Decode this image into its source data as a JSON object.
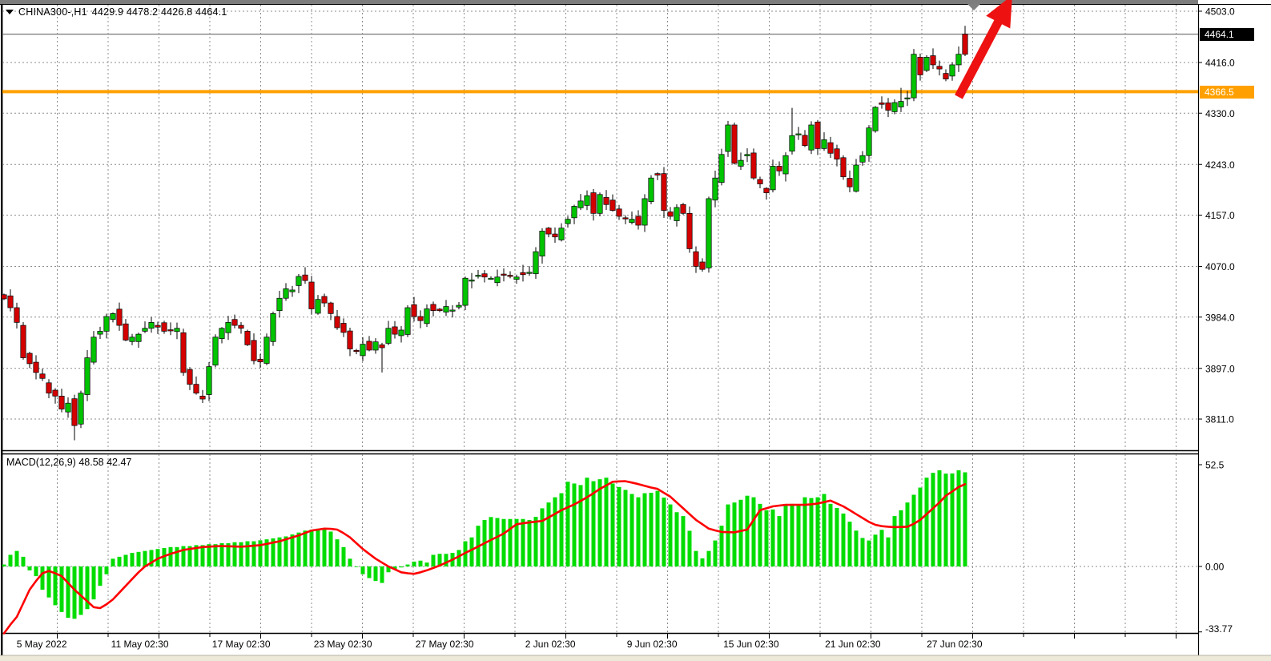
{
  "header": {
    "symbol": "CHINA300-,H1",
    "ohlc_text": "4429.9 4478.2 4426.8 4464.1"
  },
  "indicator": {
    "name": "MACD(12,26,9)",
    "values_text": "48.58 42.47"
  },
  "price_axis": {
    "current_badge": "4464.1",
    "hline_badge": "4366.5",
    "tick_labels": [
      "4503.0",
      "4416.0",
      "4330.0",
      "4243.0",
      "4157.0",
      "4070.0",
      "3984.0",
      "3897.0",
      "3811.0"
    ]
  },
  "macd_axis": {
    "tick_labels": [
      "52.5",
      "0.00",
      "-33.77"
    ],
    "tick_values": [
      52.5,
      0,
      -33.77
    ]
  },
  "time_axis": {
    "labels": [
      "5 May 2022",
      "11 May 02:30",
      "17 May 02:30",
      "23 May 02:30",
      "27 May 02:30",
      "2 Jun 02:30",
      "9 Jun 02:30",
      "15 Jun 02:30",
      "21 Jun 02:30",
      "27 Jun 02:30"
    ]
  },
  "colors": {
    "bull": "#00c400",
    "bear": "#d40000",
    "wick": "#000000",
    "hist": "#00dc00",
    "signal": "#ff0000",
    "hline": "#ffa000",
    "grid": "#8c8c8c",
    "price_line": "#777777",
    "arrow": "#ee1111",
    "marker": "#808080",
    "top_strip": "#7d7d7d",
    "bottom_strip": "#ece9d8",
    "border": "#000000"
  },
  "chart_data": [
    {
      "type": "candlestick",
      "title": "CHINA300-,H1",
      "yticks": [
        4503,
        4416,
        4330,
        4243,
        4157,
        4070,
        3984,
        3897,
        3811
      ],
      "ylim": [
        3770,
        4517
      ],
      "current_price": 4464.1,
      "hline_price": 4366.5,
      "ohlc_current": {
        "open": 4429.9,
        "high": 4478.2,
        "low": 4426.8,
        "close": 4464.1
      },
      "first_open": 4022,
      "closes": [
        4015,
        4000,
        3975,
        3915,
        3905,
        3890,
        3880,
        3855,
        3850,
        3828,
        3838,
        3800,
        3855,
        3915,
        3950,
        3960,
        3985,
        3990,
        3970,
        3945,
        3950,
        3955,
        3965,
        3975,
        3967,
        3960,
        3962,
        3965,
        3890,
        3870,
        3855,
        3845,
        3900,
        3950,
        3965,
        3975,
        3970,
        3965,
        3937,
        3910,
        3908,
        3950,
        3990,
        4016,
        4032,
        4030,
        4053,
        4046,
        3998,
        4014,
        4008,
        3990,
        3966,
        3958,
        3930,
        3926,
        3938,
        3928,
        3942,
        3932,
        3965,
        3955,
        3962,
        4000,
        3985,
        3978,
        3998,
        3995,
        3995,
        4002,
        3996,
        4004,
        4050,
        4047,
        4055,
        4052,
        4050,
        4052,
        4055,
        4053,
        4052,
        4056,
        4060,
        4095,
        4130,
        4125,
        4120,
        4135,
        4150,
        4172,
        4181,
        4190,
        4160,
        4192,
        4175,
        4165,
        4155,
        4152,
        4150,
        4140,
        4185,
        4220,
        4225,
        4165,
        4155,
        4170,
        4160,
        4100,
        4070,
        4065,
        4185,
        4220,
        4260,
        4310,
        4245,
        4250,
        4260,
        4220,
        4210,
        4195,
        4240,
        4232,
        4258,
        4292,
        4295,
        4275,
        4310,
        4270,
        4285,
        4262,
        4252,
        4222,
        4205,
        4242,
        4258,
        4305,
        4340,
        4345,
        4335,
        4348,
        4350,
        4356,
        4430,
        4395,
        4425,
        4412,
        4405,
        4388,
        4412,
        4430,
        4464.1
      ],
      "specials": {
        "11": {
          "low": 3775
        },
        "59": {
          "low": 3890
        },
        "123": {
          "high": 4339
        },
        "140": {
          "high": 4373
        },
        "150": {
          "open": 4429.9,
          "high": 4478.2,
          "low": 4426.8,
          "color": "bear"
        }
      },
      "annotations": {
        "arrow": {
          "from": [
            1197,
            121
          ],
          "to": [
            1264,
            -6
          ]
        },
        "shift_marker_x": 1216
      }
    },
    {
      "type": "bar",
      "title": "MACD(12,26,9)",
      "yticks": [
        52.5,
        0,
        -33.77
      ],
      "current": {
        "macd": 48.58,
        "signal": 42.47
      },
      "histogram": [
        1,
        6,
        8,
        5,
        -2,
        -5,
        -12,
        -16,
        -20,
        -23.5,
        -26.5,
        -27,
        -25,
        -22,
        -17,
        -10,
        -4,
        4,
        5,
        6,
        7,
        7.5,
        8,
        8.5,
        9,
        9.5,
        10,
        10,
        10.5,
        10.5,
        11,
        11,
        11.5,
        11.5,
        12,
        12,
        12.5,
        12.5,
        13,
        13,
        13.5,
        14,
        14.5,
        15,
        15.5,
        16.5,
        17.5,
        18.5,
        19,
        19.5,
        19,
        18,
        14,
        10,
        4,
        0,
        -4,
        -6,
        -7.5,
        -8.5,
        -3,
        -1.5,
        -0.5,
        1,
        2.5,
        3,
        2,
        6,
        6.5,
        6.5,
        7,
        8.5,
        13,
        15,
        21,
        24,
        25.5,
        25,
        24.5,
        24.5,
        24.5,
        24.5,
        24,
        25.6,
        30,
        33,
        35.7,
        37.8,
        43.7,
        42.8,
        42,
        45.8,
        44,
        45,
        45.8,
        42.8,
        41,
        39.5,
        37.4,
        35.7,
        37.8,
        38,
        39,
        35.5,
        32,
        28,
        26,
        18.4,
        8,
        4.2,
        8,
        13.4,
        21,
        32,
        33,
        34.4,
        36.5,
        35.7,
        32.3,
        29,
        29.4,
        26,
        31.5,
        32.3,
        31.5,
        35.7,
        35.3,
        35.7,
        37.4,
        32.3,
        30.2,
        27.3,
        23.1,
        18.5,
        14.7,
        13.4,
        16.4,
        18.9,
        15,
        26,
        29,
        33,
        37,
        40.7,
        45.8,
        48.3,
        49.6,
        47.9,
        48,
        49.6,
        48.58
      ],
      "signal": [
        -34.5,
        -30,
        -26,
        -19,
        -12,
        -7.5,
        -3.5,
        -2.3,
        -3.5,
        -5,
        -8.5,
        -12,
        -15,
        -18,
        -21,
        -21.5,
        -19.5,
        -17,
        -13.5,
        -10,
        -6.5,
        -3,
        0,
        2,
        4,
        5.3,
        6.5,
        7.5,
        8.5,
        9,
        9.5,
        10,
        10.2,
        10.4,
        10.5,
        10.4,
        10.3,
        10.2,
        10.4,
        10.7,
        11,
        11.6,
        12.3,
        13,
        14,
        15,
        16,
        17.3,
        18.5,
        19,
        19.5,
        19.4,
        19,
        17.2,
        15,
        12,
        9,
        6.5,
        4,
        2,
        0,
        -1.5,
        -3,
        -3.5,
        -3.8,
        -3,
        -2,
        -0.8,
        0.5,
        2,
        3.5,
        5.2,
        7,
        8.6,
        10.3,
        12,
        13.7,
        15.3,
        17,
        19.4,
        21.8,
        22.3,
        22.7,
        23.1,
        23.5,
        25.3,
        27.1,
        29,
        30.5,
        32,
        33.8,
        35.7,
        37.8,
        40,
        41.8,
        43.7,
        43.9,
        44,
        43.3,
        42.5,
        41.6,
        40.7,
        40,
        38,
        36,
        33,
        30,
        27,
        24,
        21.8,
        19.5,
        18.6,
        17.8,
        17.7,
        17.6,
        18.3,
        19,
        24,
        29,
        30,
        31,
        31.4,
        31.8,
        31.8,
        31.8,
        31.8,
        32.1,
        32.5,
        33.2,
        34,
        32.5,
        31,
        29,
        27,
        25,
        23,
        21.5,
        20.8,
        20.5,
        20.3,
        20.4,
        20.5,
        22,
        24,
        27,
        30,
        33,
        36.5,
        38.7,
        41,
        42.47
      ]
    }
  ]
}
